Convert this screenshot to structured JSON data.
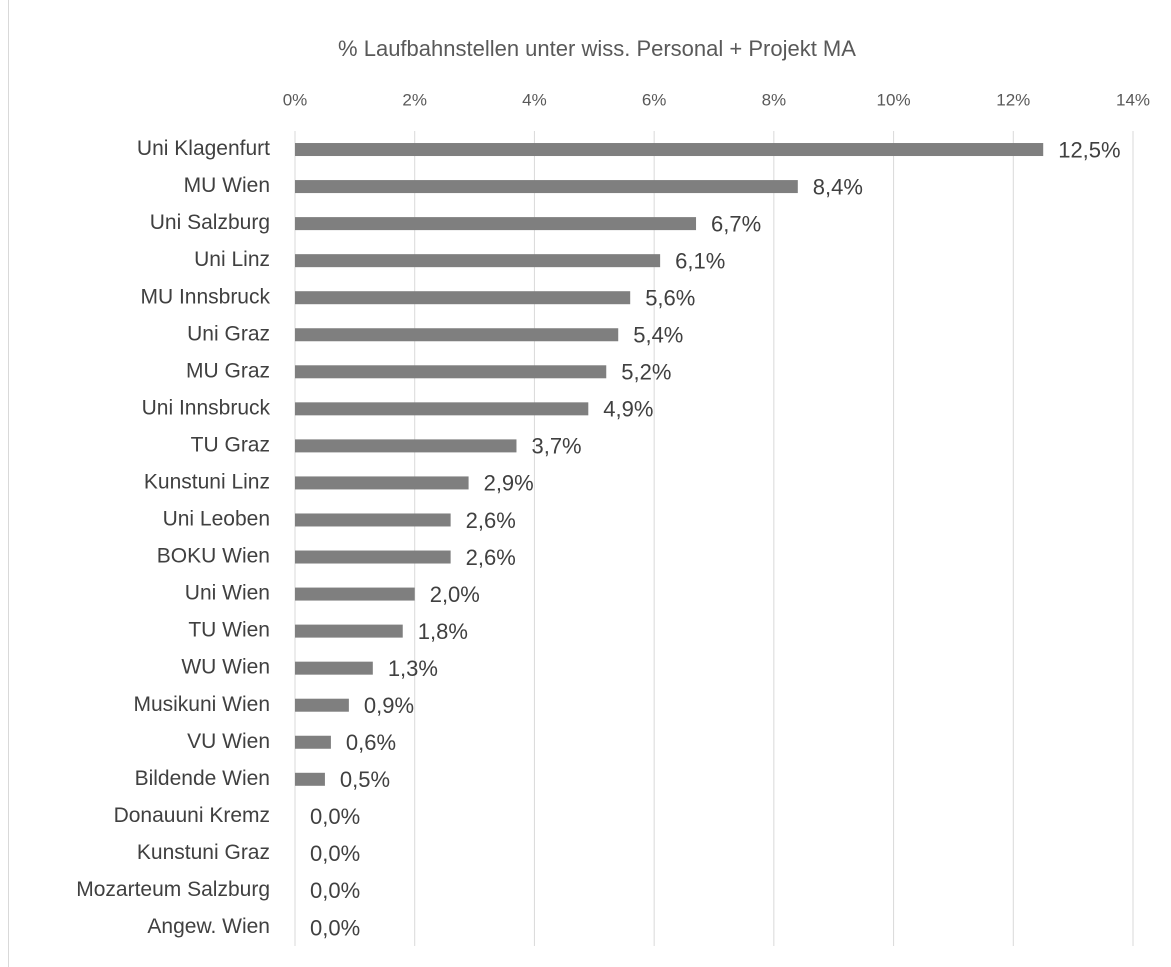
{
  "chart_data": {
    "type": "bar",
    "title": "% Laufbahnstellen unter wiss. Personal + Projekt MA",
    "categories": [
      "Uni Klagenfurt",
      "MU Wien",
      "Uni Salzburg",
      "Uni Linz",
      "MU Innsbruck",
      "Uni Graz",
      "MU Graz",
      "Uni Innsbruck",
      "TU Graz",
      "Kunstuni Linz",
      "Uni Leoben",
      "BOKU Wien",
      "Uni Wien",
      "TU Wien",
      "WU Wien",
      "Musikuni Wien",
      "VU Wien",
      "Bildende Wien",
      "Donauuni Kremz",
      "Kunstuni Graz",
      "Mozarteum Salzburg",
      "Angew. Wien"
    ],
    "values": [
      12.5,
      8.4,
      6.7,
      6.1,
      5.6,
      5.4,
      5.2,
      4.9,
      3.7,
      2.9,
      2.6,
      2.6,
      2.0,
      1.8,
      1.3,
      0.9,
      0.6,
      0.5,
      0.0,
      0.0,
      0.0,
      0.0
    ],
    "value_labels": [
      "12,5%",
      "8,4%",
      "6,7%",
      "6,1%",
      "5,6%",
      "5,4%",
      "5,2%",
      "4,9%",
      "3,7%",
      "2,9%",
      "2,6%",
      "2,6%",
      "2,0%",
      "1,8%",
      "1,3%",
      "0,9%",
      "0,6%",
      "0,5%",
      "0,0%",
      "0,0%",
      "0,0%",
      "0,0%"
    ],
    "color": "#7f7f7f",
    "xlim": [
      0,
      14
    ],
    "xticks": [
      {
        "value": 0,
        "label": "0%"
      },
      {
        "value": 2,
        "label": "2%"
      },
      {
        "value": 4,
        "label": "4%"
      },
      {
        "value": 6,
        "label": "6%"
      },
      {
        "value": 8,
        "label": "8%"
      },
      {
        "value": 10,
        "label": "10%"
      },
      {
        "value": 12,
        "label": "12%"
      },
      {
        "value": 14,
        "label": "14%"
      }
    ],
    "grid": true
  }
}
